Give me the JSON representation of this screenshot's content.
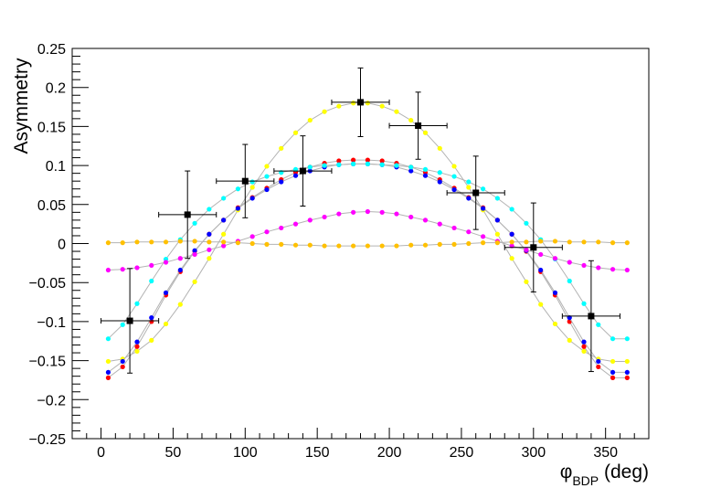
{
  "chart_data": {
    "type": "scatter",
    "title": "",
    "xlabel": {
      "main": "φ",
      "sub": "BDP",
      "unit": " (deg)"
    },
    "ylabel": "Asymmetry",
    "xlim": [
      -20,
      380
    ],
    "ylim": [
      -0.25,
      0.25
    ],
    "xticks": [
      0,
      50,
      100,
      150,
      200,
      250,
      300,
      350
    ],
    "xtick_labels": [
      "0",
      "50",
      "100",
      "150",
      "200",
      "250",
      "300",
      "350"
    ],
    "yticks": [
      -0.25,
      -0.2,
      -0.15,
      -0.1,
      -0.05,
      0,
      0.05,
      0.1,
      0.15,
      0.2,
      0.25
    ],
    "ytick_labels": [
      "−0.25",
      "−0.2",
      "−0.15",
      "−0.1",
      "−0.05",
      "0",
      "0.05",
      "0.1",
      "0.15",
      "0.2",
      "0.25"
    ],
    "grid": false,
    "legend": "none",
    "curve_x": [
      5,
      15,
      25,
      35,
      45,
      55,
      65,
      75,
      85,
      95,
      105,
      115,
      125,
      135,
      145,
      155,
      165,
      175,
      185,
      195,
      205,
      215,
      225,
      235,
      245,
      255,
      265,
      275,
      285,
      295,
      305,
      315,
      325,
      335,
      345,
      355,
      365
    ],
    "curves": [
      {
        "color": "#ffff00",
        "values": [
          -0.151,
          -0.148,
          -0.138,
          -0.124,
          -0.103,
          -0.078,
          -0.049,
          -0.019,
          0.012,
          0.043,
          0.072,
          0.099,
          0.122,
          0.142,
          0.158,
          0.169,
          0.176,
          0.18,
          0.18,
          0.176,
          0.169,
          0.158,
          0.142,
          0.122,
          0.099,
          0.072,
          0.043,
          0.012,
          -0.019,
          -0.049,
          -0.078,
          -0.103,
          -0.124,
          -0.138,
          -0.148,
          -0.151,
          -0.151
        ]
      },
      {
        "color": "#ff0000",
        "values": [
          -0.172,
          -0.158,
          -0.132,
          -0.1,
          -0.066,
          -0.036,
          -0.01,
          0.012,
          0.03,
          0.046,
          0.059,
          0.071,
          0.082,
          0.091,
          0.098,
          0.103,
          0.106,
          0.107,
          0.107,
          0.106,
          0.103,
          0.098,
          0.091,
          0.082,
          0.071,
          0.059,
          0.046,
          0.03,
          0.012,
          -0.01,
          -0.036,
          -0.066,
          -0.1,
          -0.132,
          -0.158,
          -0.172,
          -0.172
        ]
      },
      {
        "color": "#0000ff",
        "values": [
          -0.165,
          -0.151,
          -0.126,
          -0.095,
          -0.063,
          -0.034,
          -0.009,
          0.012,
          0.03,
          0.045,
          0.058,
          0.069,
          0.079,
          0.087,
          0.093,
          0.098,
          0.101,
          0.102,
          0.102,
          0.101,
          0.098,
          0.093,
          0.087,
          0.079,
          0.069,
          0.058,
          0.045,
          0.03,
          0.012,
          -0.009,
          -0.034,
          -0.063,
          -0.095,
          -0.126,
          -0.151,
          -0.165,
          -0.165
        ]
      },
      {
        "color": "#00ffff",
        "values": [
          -0.122,
          -0.104,
          -0.077,
          -0.048,
          -0.02,
          0.005,
          0.026,
          0.044,
          0.058,
          0.07,
          0.079,
          0.086,
          0.091,
          0.095,
          0.098,
          0.1,
          0.101,
          0.102,
          0.102,
          0.101,
          0.1,
          0.098,
          0.095,
          0.091,
          0.086,
          0.079,
          0.07,
          0.058,
          0.044,
          0.026,
          0.005,
          -0.02,
          -0.048,
          -0.077,
          -0.104,
          -0.122,
          -0.122
        ]
      },
      {
        "color": "#ff00ff",
        "values": [
          -0.034,
          -0.033,
          -0.031,
          -0.028,
          -0.024,
          -0.019,
          -0.014,
          -0.008,
          -0.003,
          0.003,
          0.009,
          0.015,
          0.02,
          0.025,
          0.03,
          0.034,
          0.038,
          0.04,
          0.041,
          0.04,
          0.038,
          0.034,
          0.03,
          0.025,
          0.02,
          0.015,
          0.009,
          0.003,
          -0.003,
          -0.008,
          -0.014,
          -0.019,
          -0.024,
          -0.028,
          -0.031,
          -0.033,
          -0.034
        ]
      },
      {
        "color": "#ffc000",
        "values": [
          0.001,
          0.001,
          0.002,
          0.002,
          0.002,
          0.003,
          0.003,
          0.002,
          0.002,
          0.001,
          0.0,
          -0.001,
          -0.001,
          -0.002,
          -0.002,
          -0.003,
          -0.003,
          -0.003,
          -0.003,
          -0.003,
          -0.003,
          -0.002,
          -0.002,
          -0.001,
          -0.001,
          0.0,
          0.001,
          0.001,
          0.002,
          0.002,
          0.003,
          0.003,
          0.002,
          0.002,
          0.002,
          0.001,
          0.001
        ]
      }
    ],
    "data_points": {
      "color": "#000000",
      "x": [
        20,
        60,
        100,
        140,
        180,
        220,
        260,
        300,
        340
      ],
      "y": [
        -0.099,
        0.037,
        0.08,
        0.093,
        0.181,
        0.151,
        0.065,
        -0.005,
        -0.093
      ],
      "x_error": [
        20,
        20,
        20,
        20,
        20,
        20,
        20,
        20,
        20
      ],
      "y_error": [
        0.067,
        0.056,
        0.047,
        0.045,
        0.044,
        0.043,
        0.047,
        0.057,
        0.071
      ]
    }
  }
}
